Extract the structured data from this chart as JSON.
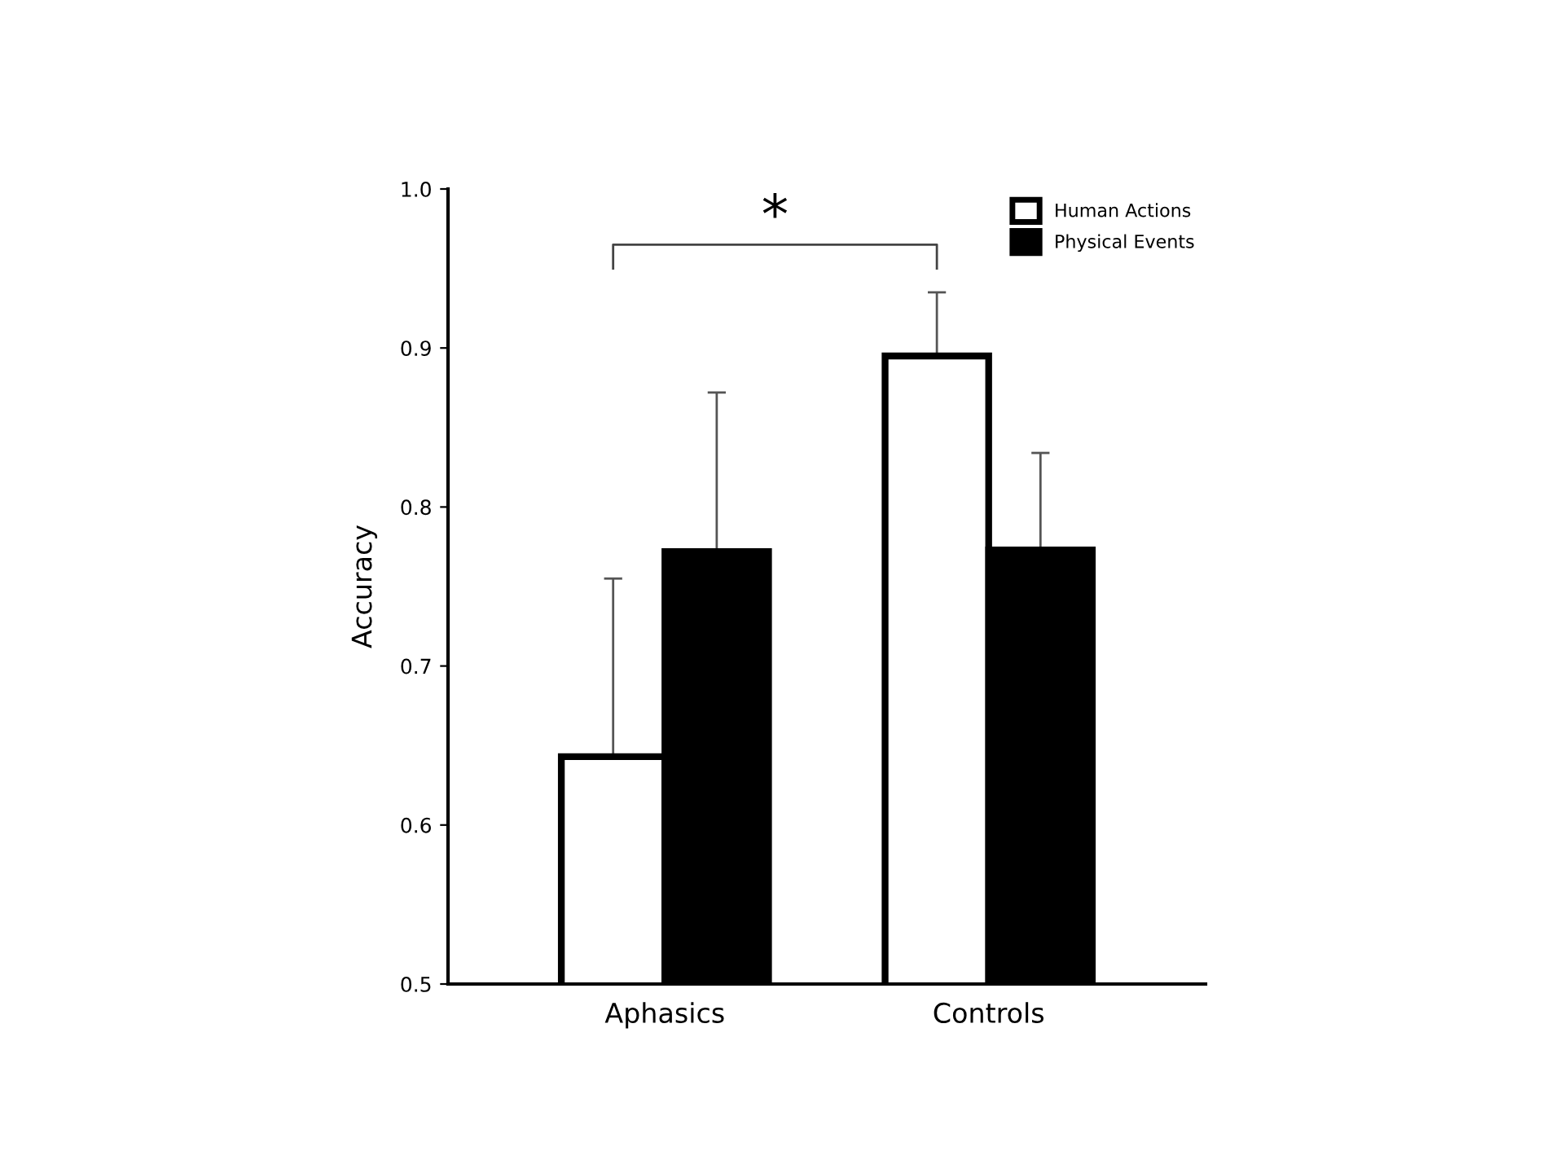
{
  "chart_data": {
    "type": "bar",
    "ylabel": "Accuracy",
    "categories": [
      "Aphasics",
      "Controls"
    ],
    "series": [
      {
        "name": "Human Actions",
        "color": "#ffffff",
        "values": [
          0.643,
          0.895
        ],
        "errors": [
          [
            0.643,
            0.755
          ],
          [
            0.895,
            0.935
          ]
        ]
      },
      {
        "name": "Physical Events",
        "color": "#000000",
        "values": [
          0.772,
          0.773
        ],
        "errors": [
          [
            0.772,
            0.872
          ],
          [
            0.773,
            0.834
          ]
        ]
      }
    ],
    "ylim": [
      0.5,
      1.0
    ],
    "yticks": [
      {
        "value": 0.5,
        "label": "0.5"
      },
      {
        "value": 0.6,
        "label": "0.6"
      },
      {
        "value": 0.7,
        "label": "0.7"
      },
      {
        "value": 0.8,
        "label": "0.8"
      },
      {
        "value": 0.9,
        "label": "0.9"
      },
      {
        "value": 1.0,
        "label": "1.0"
      }
    ],
    "annotations": [
      "*"
    ],
    "grid": false,
    "legend": "top right"
  }
}
